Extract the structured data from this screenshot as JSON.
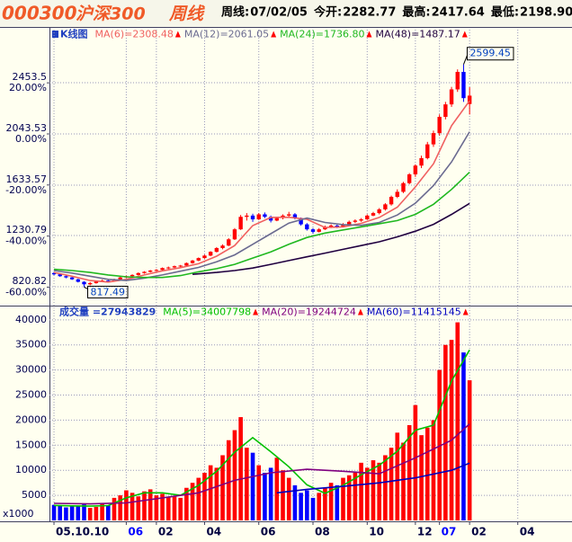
{
  "header": {
    "code": "000300",
    "name": "沪深300",
    "period": "周线",
    "info": [
      {
        "label": "周线:",
        "value": "07/02/05"
      },
      {
        "label": "今开:",
        "value": "2282.77"
      },
      {
        "label": "最高:",
        "value": "2417.64"
      },
      {
        "label": "最低:",
        "value": "2198.90"
      }
    ]
  },
  "chart_data": [
    {
      "type": "candlestick",
      "title": "K线图",
      "up_color": "#ff0000",
      "down_color": "#0000ff",
      "xlim": [
        -0.75,
        86
      ],
      "ylim": [
        684,
        2878
      ],
      "yticks": [
        2453.5,
        2043.53,
        1633.57,
        1230.79,
        820.82
      ],
      "y2lim": [
        -66.53,
        40.83
      ],
      "y2ticks": [
        {
          "value": 20,
          "label": "20.00%"
        },
        {
          "value": 0,
          "label": "0.00%"
        },
        {
          "value": -20,
          "label": "-20.00%"
        },
        {
          "value": -40,
          "label": "-40.00%"
        },
        {
          "value": -60,
          "label": "-60.00%"
        }
      ],
      "max_mark": 2599.45,
      "min_mark": 817.49,
      "candles": [
        [
          930,
          940,
          912,
          920
        ],
        [
          920,
          925,
          900,
          905
        ],
        [
          905,
          912,
          888,
          895
        ],
        [
          895,
          900,
          875,
          880
        ],
        [
          880,
          885,
          855,
          860
        ],
        [
          860,
          865,
          817.49,
          840
        ],
        [
          840,
          858,
          832,
          850
        ],
        [
          850,
          868,
          845,
          862
        ],
        [
          862,
          878,
          858,
          870
        ],
        [
          870,
          876,
          860,
          868
        ],
        [
          868,
          885,
          865,
          880
        ],
        [
          880,
          900,
          876,
          895
        ],
        [
          895,
          910,
          890,
          905
        ],
        [
          905,
          920,
          900,
          915
        ],
        [
          915,
          935,
          910,
          930
        ],
        [
          930,
          945,
          925,
          940
        ],
        [
          940,
          955,
          935,
          950
        ],
        [
          950,
          962,
          944,
          955
        ],
        [
          955,
          975,
          950,
          970
        ],
        [
          970,
          982,
          962,
          975
        ],
        [
          975,
          990,
          970,
          985
        ],
        [
          985,
          995,
          975,
          990
        ],
        [
          990,
          1015,
          985,
          1010
        ],
        [
          1010,
          1035,
          1005,
          1030
        ],
        [
          1030,
          1055,
          1025,
          1050
        ],
        [
          1050,
          1078,
          1045,
          1070
        ],
        [
          1070,
          1105,
          1065,
          1100
        ],
        [
          1100,
          1138,
          1095,
          1130
        ],
        [
          1130,
          1160,
          1120,
          1150
        ],
        [
          1150,
          1210,
          1145,
          1200
        ],
        [
          1200,
          1290,
          1195,
          1280
        ],
        [
          1280,
          1395,
          1275,
          1380
        ],
        [
          1380,
          1410,
          1350,
          1390
        ],
        [
          1390,
          1405,
          1340,
          1360
        ],
        [
          1360,
          1410,
          1355,
          1400
        ],
        [
          1400,
          1415,
          1370,
          1380
        ],
        [
          1380,
          1390,
          1335,
          1350
        ],
        [
          1350,
          1380,
          1345,
          1370
        ],
        [
          1370,
          1400,
          1360,
          1390
        ],
        [
          1390,
          1420,
          1380,
          1400
        ],
        [
          1400,
          1410,
          1360,
          1370
        ],
        [
          1370,
          1375,
          1310,
          1320
        ],
        [
          1320,
          1330,
          1270,
          1280
        ],
        [
          1280,
          1290,
          1245,
          1260
        ],
        [
          1260,
          1290,
          1255,
          1280
        ],
        [
          1280,
          1310,
          1275,
          1300
        ],
        [
          1300,
          1320,
          1290,
          1310
        ],
        [
          1310,
          1318,
          1290,
          1300
        ],
        [
          1300,
          1330,
          1295,
          1320
        ],
        [
          1320,
          1350,
          1315,
          1340
        ],
        [
          1340,
          1360,
          1330,
          1350
        ],
        [
          1350,
          1370,
          1340,
          1360
        ],
        [
          1360,
          1400,
          1355,
          1390
        ],
        [
          1390,
          1420,
          1385,
          1410
        ],
        [
          1410,
          1450,
          1400,
          1440
        ],
        [
          1440,
          1490,
          1430,
          1480
        ],
        [
          1480,
          1550,
          1470,
          1540
        ],
        [
          1540,
          1600,
          1530,
          1580
        ],
        [
          1580,
          1660,
          1570,
          1650
        ],
        [
          1650,
          1730,
          1640,
          1720
        ],
        [
          1720,
          1800,
          1700,
          1790
        ],
        [
          1790,
          1870,
          1770,
          1850
        ],
        [
          1850,
          1980,
          1840,
          1960
        ],
        [
          1960,
          2070,
          1940,
          2050
        ],
        [
          2050,
          2200,
          2030,
          2180
        ],
        [
          2180,
          2300,
          2160,
          2280
        ],
        [
          2280,
          2420,
          2260,
          2400
        ],
        [
          2400,
          2560,
          2380,
          2540
        ],
        [
          2540,
          2599.45,
          2300,
          2330
        ],
        [
          2282.77,
          2417.64,
          2198.9,
          2350
        ]
      ],
      "series": [
        {
          "name": "MA(6)=2308.48",
          "color": "#f06060",
          "x": [
            0,
            3,
            6,
            9,
            12,
            15,
            18,
            21,
            24,
            27,
            30,
            33,
            36,
            39,
            42,
            45,
            48,
            51,
            54,
            57,
            60,
            63,
            66,
            69
          ],
          "values": [
            935,
            905,
            870,
            858,
            880,
            915,
            948,
            973,
            1005,
            1065,
            1150,
            1310,
            1375,
            1377,
            1360,
            1295,
            1300,
            1328,
            1375,
            1457,
            1620,
            1805,
            2110,
            2308.48
          ]
        },
        {
          "name": "MA(12)=2061.05",
          "color": "#6a6a90",
          "x": [
            0,
            3,
            6,
            9,
            12,
            15,
            18,
            21,
            24,
            27,
            30,
            33,
            36,
            39,
            42,
            45,
            48,
            51,
            54,
            57,
            60,
            63,
            66,
            69
          ],
          "values": [
            950,
            930,
            905,
            880,
            870,
            890,
            915,
            945,
            975,
            1020,
            1075,
            1160,
            1245,
            1330,
            1370,
            1335,
            1318,
            1312,
            1335,
            1395,
            1490,
            1630,
            1820,
            2061.05
          ]
        },
        {
          "name": "MA(24)=1736.80",
          "color": "#20b820",
          "x": [
            0,
            3,
            6,
            9,
            12,
            15,
            18,
            21,
            24,
            27,
            30,
            33,
            36,
            39,
            42,
            45,
            48,
            51,
            54,
            57,
            60,
            63,
            66,
            69
          ],
          "values": [
            960,
            950,
            935,
            915,
            900,
            895,
            895,
            910,
            940,
            965,
            1000,
            1050,
            1100,
            1160,
            1215,
            1250,
            1275,
            1300,
            1325,
            1350,
            1400,
            1480,
            1600,
            1736.8
          ]
        },
        {
          "name": "MA(48)=1487.17",
          "color": "#200040",
          "x": [
            23,
            27,
            30,
            33,
            36,
            39,
            42,
            45,
            48,
            51,
            54,
            57,
            60,
            63,
            66,
            69
          ],
          "values": [
            920,
            935,
            950,
            970,
            1000,
            1030,
            1060,
            1090,
            1120,
            1150,
            1180,
            1220,
            1265,
            1320,
            1400,
            1487.17
          ]
        }
      ]
    },
    {
      "type": "bar",
      "title": "成交量 =27943829",
      "unit_label": "x1000",
      "xlim": [
        -0.75,
        86
      ],
      "ylim": [
        0,
        42300
      ],
      "yticks": [
        40000,
        35000,
        30000,
        25000,
        20000,
        15000,
        10000,
        5000
      ],
      "xticks": [
        {
          "value": 0,
          "label": "05.10.10"
        },
        {
          "value": 12,
          "label": "06",
          "color": "#0000ff"
        },
        {
          "value": 17,
          "label": "02"
        },
        {
          "value": 25,
          "label": "04"
        },
        {
          "value": 34,
          "label": "06"
        },
        {
          "value": 43,
          "label": "08"
        },
        {
          "value": 52,
          "label": "10"
        },
        {
          "value": 60,
          "label": "12"
        },
        {
          "value": 64,
          "label": "07",
          "color": "#0000ff"
        },
        {
          "value": 69,
          "label": "02"
        },
        {
          "value": 77,
          "label": "04"
        }
      ],
      "values": [
        3100,
        2900,
        2600,
        3000,
        2800,
        3200,
        2500,
        2700,
        3400,
        3000,
        4500,
        5000,
        6000,
        5500,
        4800,
        5800,
        6200,
        5000,
        5300,
        4600,
        4800,
        4500,
        6500,
        7500,
        8500,
        9500,
        11000,
        10500,
        13000,
        16000,
        18000,
        20600,
        14500,
        13500,
        11000,
        9500,
        10500,
        12500,
        10000,
        8500,
        7000,
        5500,
        6000,
        4500,
        5500,
        6500,
        7500,
        7000,
        8500,
        9000,
        9500,
        11500,
        10500,
        12000,
        11500,
        13000,
        14500,
        17500,
        15500,
        19000,
        23000,
        17000,
        18500,
        20000,
        30000,
        35000,
        36000,
        39500,
        33500,
        27943.829
      ],
      "series": [
        {
          "name": "MA(5)=34007798",
          "color": "#00c000",
          "x": [
            0,
            3,
            6,
            9,
            12,
            15,
            18,
            21,
            24,
            27,
            30,
            33,
            36,
            39,
            42,
            45,
            48,
            51,
            54,
            57,
            60,
            63,
            66,
            69
          ],
          "values": [
            3000,
            2900,
            2850,
            2950,
            4500,
            5500,
            5500,
            5000,
            7000,
            9800,
            13600,
            16500,
            13700,
            10700,
            7100,
            5400,
            7000,
            9100,
            11000,
            13800,
            18000,
            19000,
            27800,
            34007.798
          ]
        },
        {
          "name": "MA(20)=19244724",
          "color": "#800080",
          "x": [
            0,
            6,
            12,
            18,
            24,
            30,
            36,
            42,
            48,
            54,
            60,
            66,
            69
          ],
          "values": [
            3400,
            3300,
            3500,
            4500,
            5500,
            8000,
            9500,
            10200,
            9800,
            9300,
            12500,
            16000,
            19244.724
          ]
        },
        {
          "name": "MA(60)=11415145",
          "color": "#0000c0",
          "x": [
            37,
            42,
            48,
            54,
            60,
            66,
            69
          ],
          "values": [
            5500,
            6200,
            6800,
            7500,
            8500,
            10000,
            11415.145
          ]
        }
      ]
    }
  ]
}
